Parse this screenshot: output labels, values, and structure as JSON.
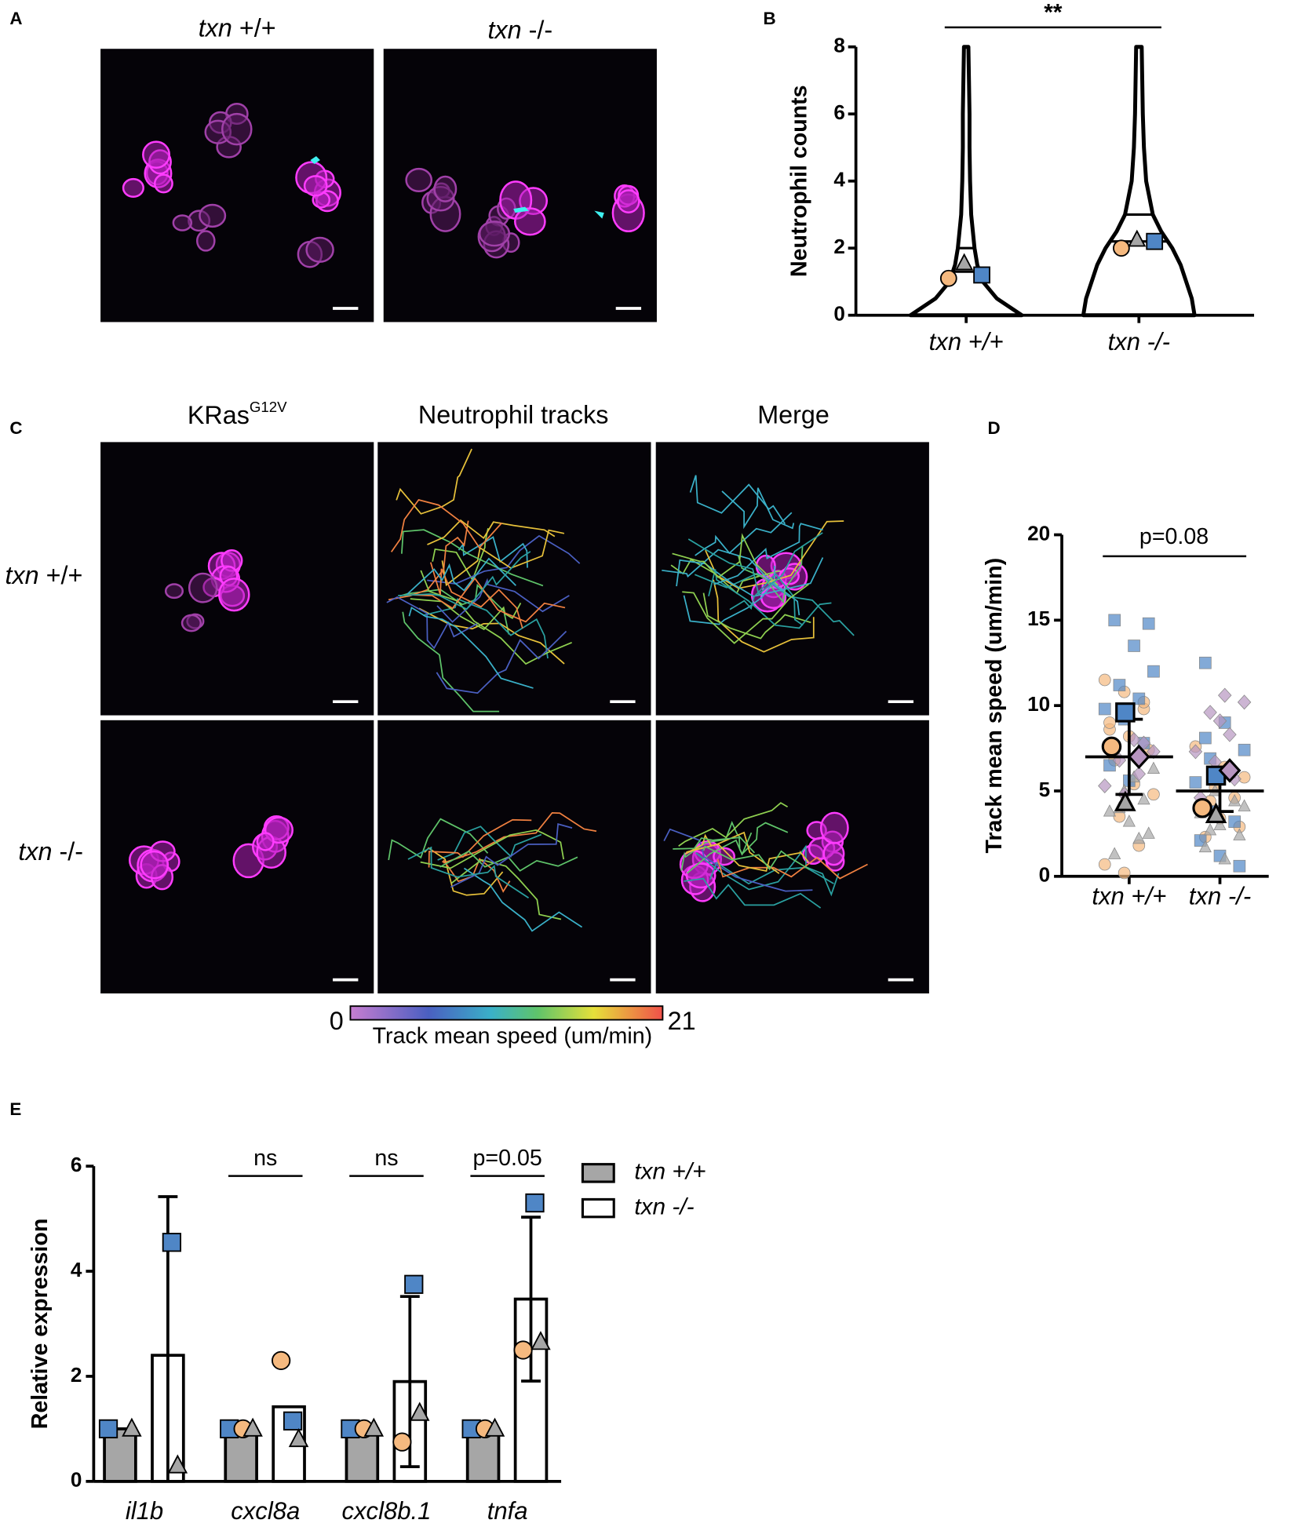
{
  "panel_labels": {
    "a": "A",
    "b": "B",
    "c": "C",
    "d": "D",
    "e": "E"
  },
  "panel_a": {
    "columns": [
      {
        "gene": "txn",
        "genotype": "+/+"
      },
      {
        "gene": "txn",
        "genotype": "-/-"
      }
    ]
  },
  "panel_c": {
    "columns": [
      {
        "text": "KRas",
        "superscript": "G12V"
      },
      {
        "text": "Neutrophil tracks"
      },
      {
        "text": "Merge"
      }
    ],
    "rows": [
      {
        "gene": "txn",
        "genotype": "+/+"
      },
      {
        "gene": "txn",
        "genotype": "-/-"
      }
    ],
    "colorbar": {
      "min": 0,
      "max": 21,
      "label": "Track mean speed (um/min)"
    }
  },
  "chart_data": [
    {
      "type": "violin",
      "ylabel": "Neutrophil counts",
      "categories": [
        "txn +/+",
        "txn -/-"
      ],
      "ylim": [
        0,
        8
      ],
      "yticks": [
        0,
        2,
        4,
        6,
        8
      ],
      "significance": "**",
      "levels": [
        0,
        0.5,
        1,
        1.5,
        2,
        2.5,
        3,
        4,
        5,
        6,
        7,
        8
      ],
      "violins": [
        [
          1.0,
          0.55,
          0.3,
          0.2,
          0.15,
          0.12,
          0.09,
          0.07,
          0.06,
          0.06,
          0.05,
          0.04
        ],
        [
          1.0,
          0.95,
          0.85,
          0.75,
          0.6,
          0.4,
          0.25,
          0.13,
          0.09,
          0.07,
          0.06,
          0.05
        ]
      ],
      "medians": [
        1.3,
        2.2
      ],
      "upper_quartiles": [
        2.0,
        3.0
      ],
      "series": [
        {
          "marker": "circle",
          "color": "#f5b97f",
          "values": [
            1.1,
            2.0
          ]
        },
        {
          "marker": "triangle",
          "color": "#a6a6a6",
          "values": [
            1.55,
            2.25
          ]
        },
        {
          "marker": "square",
          "color": "#4f86c6",
          "values": [
            1.2,
            2.2
          ]
        }
      ]
    },
    {
      "type": "scatter",
      "ylabel": "Track mean speed (um/min)",
      "categories": [
        "txn +/+",
        "txn -/-"
      ],
      "ylim": [
        0,
        20
      ],
      "yticks": [
        0,
        5,
        10,
        15,
        20
      ],
      "annotation": "p=0.08",
      "means": [
        7.0,
        5.0
      ],
      "sd": [
        2.2,
        1.2
      ],
      "series": [
        {
          "marker": "circle",
          "color": "#f5b97f",
          "values": [
            7.6,
            4.0
          ],
          "points": [
            [
              11.5,
              10.8,
              9.8,
              8.6,
              8.2,
              7.4,
              6.8,
              5.4,
              4.8,
              3.5,
              1.8,
              0.7,
              0.2,
              10.2,
              9.0
            ],
            [
              7.6,
              5.2,
              4.6,
              4.0,
              3.4,
              2.9,
              2.3,
              6.4,
              5.8,
              4.4
            ]
          ]
        },
        {
          "marker": "square",
          "color": "#4f86c6",
          "values": [
            9.6,
            5.9
          ],
          "points": [
            [
              15.0,
              13.5,
              12.0,
              11.2,
              10.4,
              9.8,
              9.2,
              7.8,
              6.5,
              5.6,
              14.8
            ],
            [
              12.5,
              9.0,
              7.4,
              6.9,
              6.1,
              5.5,
              3.8,
              3.2,
              2.1,
              1.2,
              0.6,
              8.1
            ]
          ]
        },
        {
          "marker": "triangle",
          "color": "#a6a6a6",
          "values": [
            4.3,
            3.6
          ],
          "points": [
            [
              5.0,
              4.5,
              3.8,
              3.2,
              2.5,
              1.3,
              5.8,
              6.3,
              4.0,
              2.2
            ],
            [
              5.0,
              4.4,
              3.7,
              3.0,
              2.4,
              1.7,
              1.0,
              4.1,
              2.7
            ]
          ]
        },
        {
          "marker": "diamond",
          "color": "#b795c0",
          "values": [
            7.0,
            6.2
          ],
          "points": [
            [
              8.0,
              7.3,
              6.8,
              6.0,
              5.3,
              4.8,
              7.8
            ],
            [
              10.6,
              10.2,
              9.6,
              8.3,
              7.3,
              6.7,
              5.7,
              4.6,
              9.1
            ]
          ]
        }
      ]
    },
    {
      "type": "bar",
      "ylabel": "Relative expression",
      "categories": [
        "il1b",
        "cxcl8a",
        "cxcl8b.1",
        "tnfa"
      ],
      "ylim": [
        0,
        6
      ],
      "yticks": [
        0,
        2,
        4,
        6
      ],
      "annotations": [
        null,
        "ns",
        "ns",
        "p=0.05"
      ],
      "series": [
        {
          "name": "txn +/+",
          "color": "#a6a6a6",
          "values": [
            1,
            1,
            1,
            1
          ]
        },
        {
          "name": "txn -/-",
          "color": "#ffffff",
          "values": [
            2.4,
            1.42,
            1.9,
            3.47
          ],
          "errors": [
            3.02,
            null,
            1.62,
            1.56
          ]
        }
      ],
      "replicates": [
        {
          "marker": "square",
          "color": "#4f86c6",
          "values": [
            [
              1,
              4.55
            ],
            [
              1,
              1.15
            ],
            [
              1,
              3.75
            ],
            [
              1,
              5.3
            ]
          ]
        },
        {
          "marker": "circle",
          "color": "#f5b97f",
          "values": [
            [
              null,
              null
            ],
            [
              1,
              2.3
            ],
            [
              1,
              0.75
            ],
            [
              1,
              2.5
            ]
          ]
        },
        {
          "marker": "triangle",
          "color": "#a6a6a6",
          "values": [
            [
              1,
              0.3
            ],
            [
              1,
              0.8
            ],
            [
              1,
              1.3
            ],
            [
              1,
              2.65
            ]
          ]
        }
      ]
    }
  ]
}
